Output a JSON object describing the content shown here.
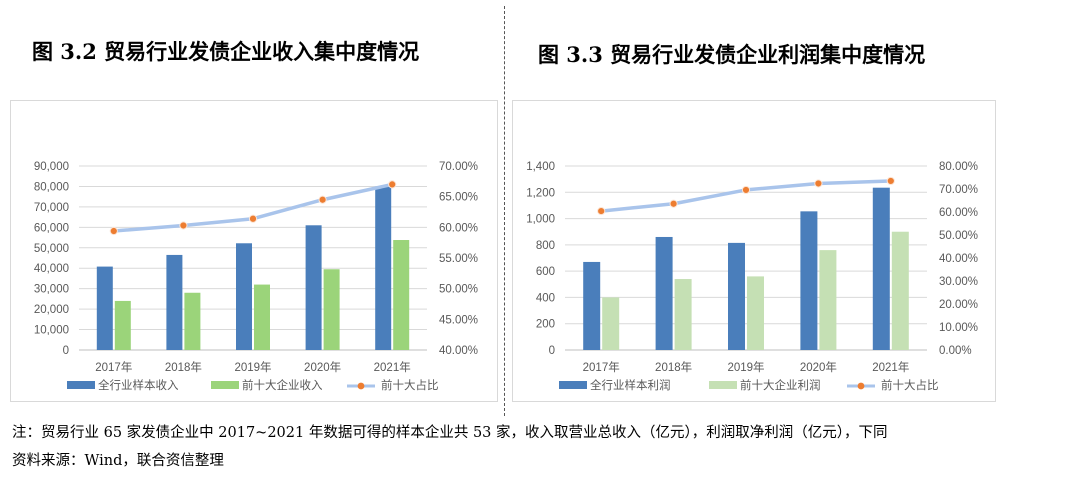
{
  "figure_left": {
    "title": "图 3.2  贸易行业发债企业收入集中度情况"
  },
  "figure_right": {
    "title": "图 3.3  贸易行业发债企业利润集中度情况"
  },
  "notes": {
    "line1": "注：贸易行业 65 家发债企业中 2017~2021 年数据可得的样本企业共 53 家，收入取营业总收入（亿元），利润取净利润（亿元），下同",
    "line2": "资料来源：Wind，联合资信整理"
  },
  "colors": {
    "series1": "#4a7ebb",
    "series2_left": "#9bd47a",
    "series2_right": "#c5e0b4",
    "line": "#a9c4eb",
    "marker": "#ed7d31",
    "grid": "#d9d9d9"
  },
  "chart_data": [
    {
      "type": "bar",
      "title": "图 3.2  贸易行业发债企业收入集中度情况",
      "categories": [
        "2017年",
        "2018年",
        "2019年",
        "2020年",
        "2021年"
      ],
      "series": [
        {
          "name": "全行业样本收入",
          "axis": "left",
          "values": [
            40800,
            46500,
            52200,
            61000,
            80000
          ]
        },
        {
          "name": "前十大企业收入",
          "axis": "left",
          "values": [
            24000,
            28000,
            32000,
            39500,
            53800
          ]
        },
        {
          "name": "前十大占比",
          "axis": "right",
          "type": "line",
          "values": [
            59.4,
            60.3,
            61.4,
            64.5,
            67.0
          ]
        }
      ],
      "ylim_left": [
        0,
        90000
      ],
      "ylim_right": [
        40,
        70
      ],
      "yticks_left": [
        "0",
        "10,000",
        "20,000",
        "30,000",
        "40,000",
        "50,000",
        "60,000",
        "70,000",
        "80,000",
        "90,000"
      ],
      "yticks_right": [
        "40.00%",
        "45.00%",
        "50.00%",
        "55.00%",
        "60.00%",
        "65.00%",
        "70.00%"
      ],
      "legend": [
        "全行业样本收入",
        "前十大企业收入",
        "前十大占比"
      ]
    },
    {
      "type": "bar",
      "title": "图 3.3  贸易行业发债企业利润集中度情况",
      "categories": [
        "2017年",
        "2018年",
        "2019年",
        "2020年",
        "2021年"
      ],
      "series": [
        {
          "name": "全行业样本利润",
          "axis": "left",
          "values": [
            670,
            860,
            815,
            1055,
            1235
          ]
        },
        {
          "name": "前十大企业利润",
          "axis": "left",
          "values": [
            400,
            540,
            560,
            760,
            900
          ]
        },
        {
          "name": "前十大占比",
          "axis": "right",
          "type": "line",
          "values": [
            60.4,
            63.6,
            69.6,
            72.4,
            73.5
          ]
        }
      ],
      "ylim_left": [
        0,
        1400
      ],
      "ylim_right": [
        0,
        80
      ],
      "yticks_left": [
        "0",
        "200",
        "400",
        "600",
        "800",
        "1,000",
        "1,200",
        "1,400"
      ],
      "yticks_right": [
        "0.00%",
        "10.00%",
        "20.00%",
        "30.00%",
        "40.00%",
        "50.00%",
        "60.00%",
        "70.00%",
        "80.00%"
      ],
      "legend": [
        "全行业样本利润",
        "前十大企业利润",
        "前十大占比"
      ]
    }
  ]
}
